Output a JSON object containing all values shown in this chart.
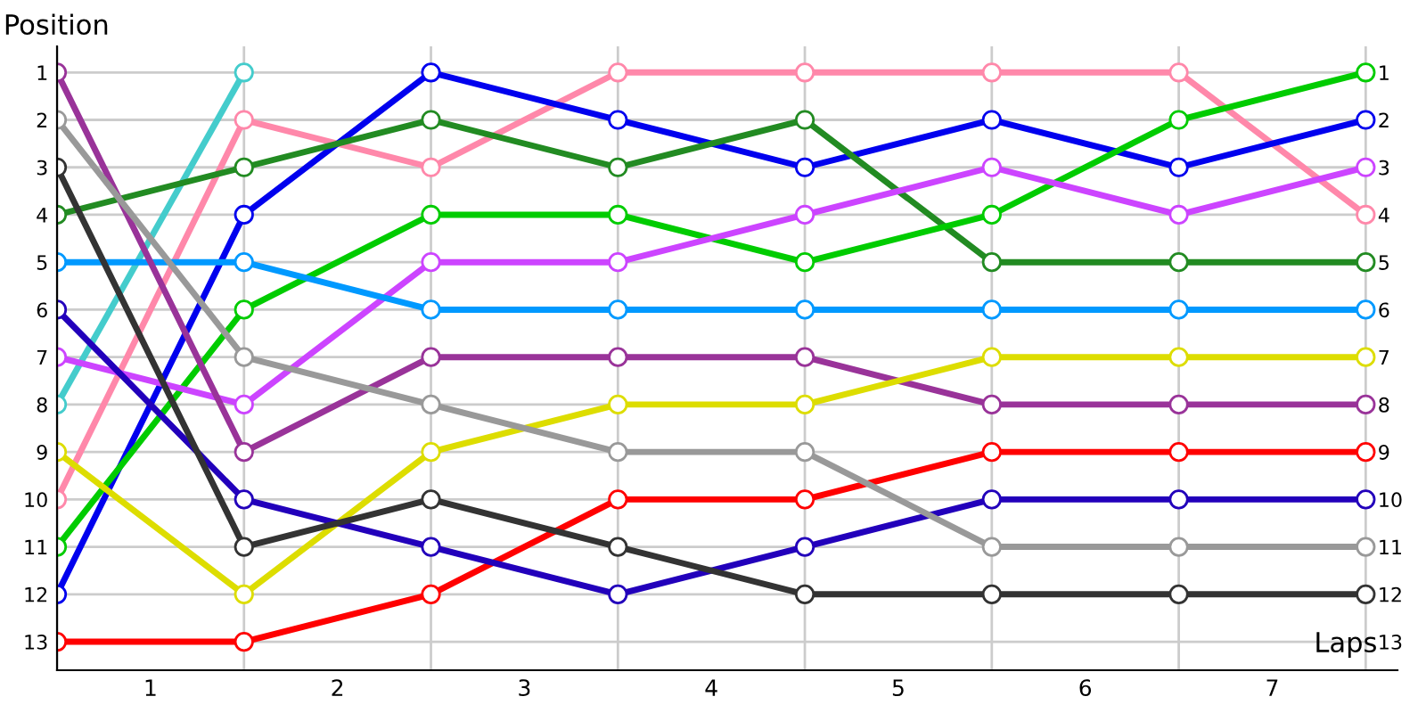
{
  "chart_data": {
    "type": "line",
    "xlabel": "Laps",
    "ylabel": "Position",
    "x": [
      0,
      1,
      2,
      3,
      4,
      5,
      6,
      7
    ],
    "series": [
      {
        "color": "#ff88aa",
        "values": [
          10,
          2,
          3,
          1,
          1,
          1,
          1,
          4
        ]
      },
      {
        "color": "#44cccc",
        "values": [
          8,
          1,
          null,
          null,
          null,
          null,
          null,
          null
        ]
      },
      {
        "color": "#0000ee",
        "values": [
          12,
          4,
          1,
          2,
          3,
          2,
          3,
          2
        ]
      },
      {
        "color": "#228b22",
        "values": [
          4,
          3,
          2,
          3,
          2,
          5,
          5,
          5
        ]
      },
      {
        "color": "#00cc00",
        "values": [
          11,
          6,
          4,
          4,
          5,
          4,
          2,
          1
        ]
      },
      {
        "color": "#cc44ff",
        "values": [
          7,
          8,
          5,
          5,
          4,
          3,
          4,
          3
        ]
      },
      {
        "color": "#0099ff",
        "values": [
          5,
          5,
          6,
          6,
          6,
          6,
          6,
          6
        ]
      },
      {
        "color": "#993399",
        "values": [
          1,
          9,
          7,
          7,
          7,
          8,
          8,
          8
        ]
      },
      {
        "color": "#dddd00",
        "values": [
          9,
          12,
          9,
          8,
          8,
          7,
          7,
          7
        ]
      },
      {
        "color": "#ff0000",
        "values": [
          13,
          13,
          12,
          10,
          10,
          9,
          9,
          9
        ]
      },
      {
        "color": "#2200bb",
        "values": [
          6,
          10,
          11,
          12,
          11,
          10,
          10,
          10
        ]
      },
      {
        "color": "#999999",
        "values": [
          2,
          7,
          8,
          9,
          9,
          11,
          11,
          11
        ]
      },
      {
        "color": "#333333",
        "values": [
          3,
          11,
          10,
          11,
          12,
          12,
          12,
          12
        ]
      }
    ],
    "xlim": [
      0,
      7.17
    ],
    "xticks": [
      {
        "value": 0,
        "label": null
      },
      {
        "value": 0.5,
        "label": "1"
      },
      {
        "value": 1,
        "label": null
      },
      {
        "value": 1.5,
        "label": "2"
      },
      {
        "value": 2,
        "label": null
      },
      {
        "value": 2.5,
        "label": "3"
      },
      {
        "value": 3,
        "label": null
      },
      {
        "value": 3.5,
        "label": "4"
      },
      {
        "value": 4,
        "label": null
      },
      {
        "value": 4.5,
        "label": "5"
      },
      {
        "value": 5,
        "label": null
      },
      {
        "value": 5.5,
        "label": "6"
      },
      {
        "value": 6,
        "label": null
      },
      {
        "value": 6.5,
        "label": "7"
      },
      {
        "value": 7,
        "label": null
      }
    ],
    "ylim": [
      13.6,
      0.45
    ],
    "yticks": [
      1,
      2,
      3,
      4,
      5,
      6,
      7,
      8,
      9,
      10,
      11,
      12,
      13
    ],
    "y2lim": [
      13.6,
      0.45
    ],
    "y2ticks": [
      1,
      2,
      3,
      4,
      5,
      6,
      7,
      8,
      9,
      10,
      11,
      12,
      13
    ],
    "grid": true,
    "marker": "circle",
    "line_style": "solid",
    "legend": false
  }
}
